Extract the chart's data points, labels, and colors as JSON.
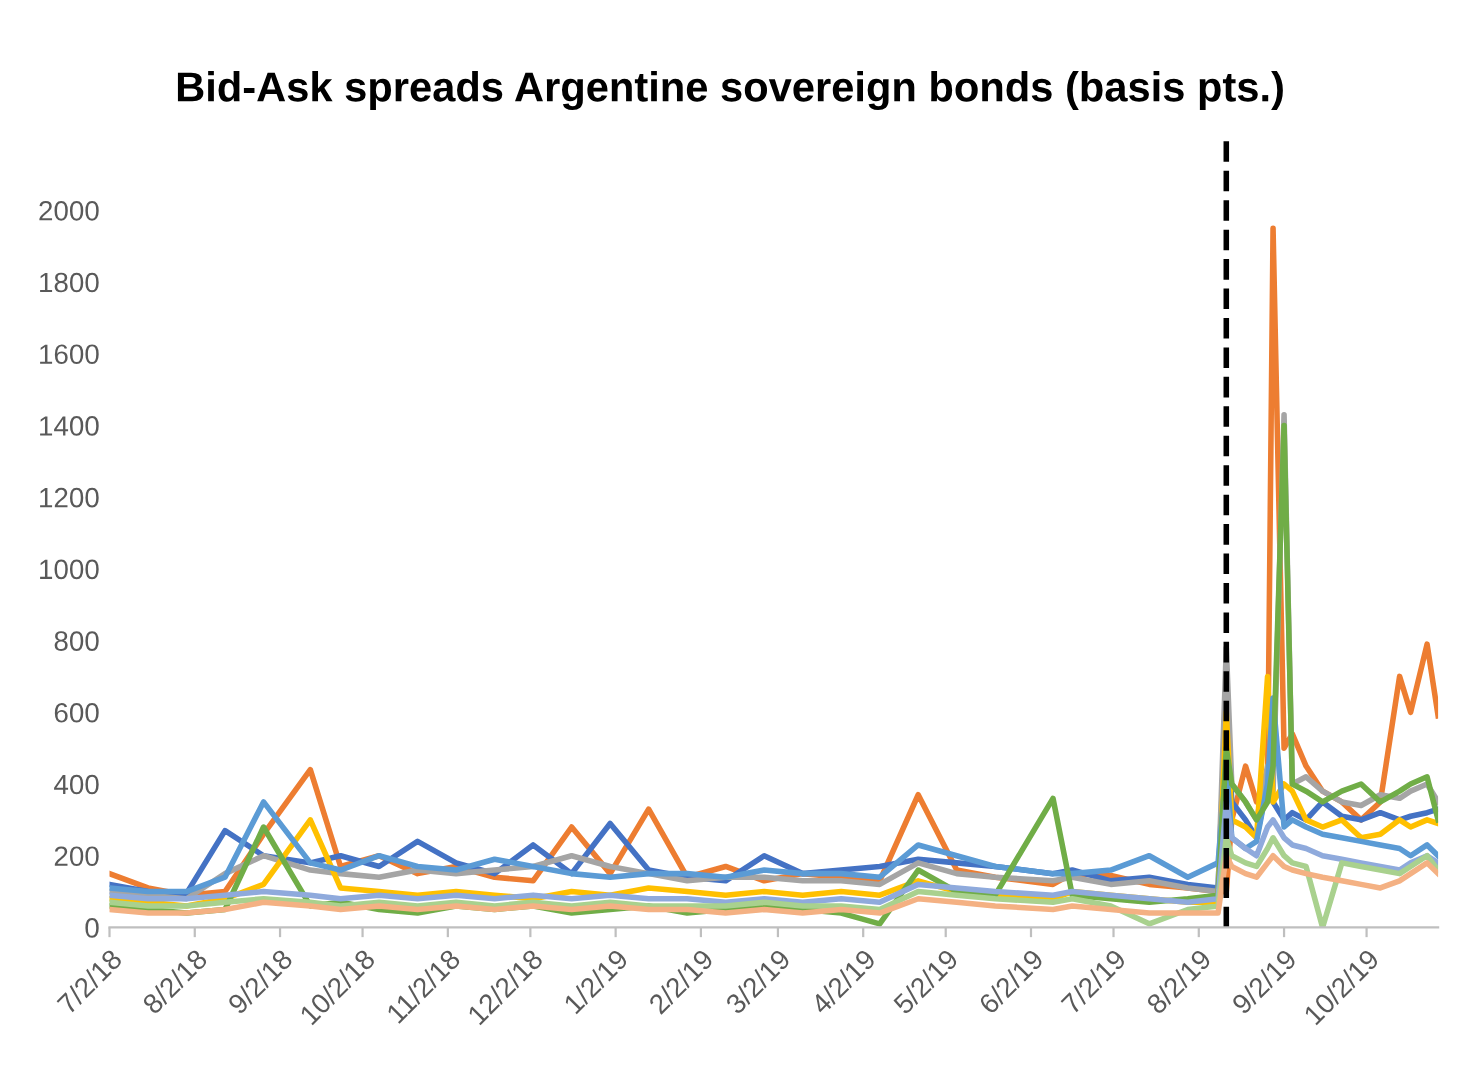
{
  "chart_data": {
    "type": "line",
    "title": "Bid-Ask spreads Argentine sovereign bonds (basis pts.)",
    "x": [
      "2018-07-02",
      "2018-07-16",
      "2018-07-30",
      "2018-08-13",
      "2018-08-27",
      "2018-09-13",
      "2018-09-24",
      "2018-10-08",
      "2018-10-22",
      "2018-11-05",
      "2018-11-19",
      "2018-12-03",
      "2018-12-17",
      "2018-12-31",
      "2019-01-14",
      "2019-01-28",
      "2019-02-11",
      "2019-02-25",
      "2019-03-11",
      "2019-03-25",
      "2019-04-08",
      "2019-04-22",
      "2019-05-06",
      "2019-05-20",
      "2019-06-10",
      "2019-06-17",
      "2019-07-01",
      "2019-07-15",
      "2019-07-29",
      "2019-08-09",
      "2019-08-12",
      "2019-08-14",
      "2019-08-19",
      "2019-08-23",
      "2019-08-27",
      "2019-08-29",
      "2019-09-02",
      "2019-09-05",
      "2019-09-10",
      "2019-09-16",
      "2019-09-23",
      "2019-09-30",
      "2019-10-07",
      "2019-10-14",
      "2019-10-18",
      "2019-10-24",
      "2019-10-28"
    ],
    "series": [
      {
        "color": "#ed7d31",
        "values": [
          150,
          110,
          90,
          100,
          260,
          440,
          170,
          200,
          150,
          170,
          140,
          130,
          280,
          150,
          330,
          140,
          170,
          130,
          150,
          140,
          130,
          370,
          160,
          140,
          120,
          150,
          145,
          120,
          110,
          100,
          100,
          300,
          450,
          350,
          400,
          1950,
          500,
          540,
          450,
          380,
          350,
          300,
          350,
          700,
          600,
          790,
          590
        ]
      },
      {
        "color": "#4472c4",
        "values": [
          120,
          100,
          95,
          270,
          200,
          180,
          200,
          170,
          240,
          180,
          150,
          230,
          150,
          290,
          160,
          140,
          130,
          200,
          150,
          160,
          170,
          190,
          180,
          170,
          150,
          160,
          130,
          140,
          120,
          110,
          650,
          350,
          300,
          250,
          400,
          350,
          300,
          320,
          300,
          350,
          310,
          300,
          320,
          300,
          310,
          320,
          330
        ]
      },
      {
        "color": "#a5a5a5",
        "values": [
          100,
          90,
          80,
          150,
          200,
          160,
          150,
          140,
          160,
          150,
          160,
          170,
          200,
          170,
          150,
          130,
          140,
          140,
          130,
          130,
          120,
          180,
          150,
          140,
          130,
          140,
          120,
          130,
          110,
          100,
          780,
          400,
          350,
          300,
          450,
          380,
          1430,
          400,
          420,
          380,
          350,
          340,
          370,
          360,
          380,
          400,
          350
        ]
      },
      {
        "color": "#ffc000",
        "values": [
          80,
          70,
          60,
          80,
          120,
          300,
          110,
          100,
          90,
          100,
          90,
          80,
          100,
          90,
          110,
          100,
          90,
          100,
          90,
          100,
          90,
          130,
          100,
          90,
          80,
          100,
          90,
          80,
          70,
          70,
          600,
          300,
          280,
          250,
          700,
          350,
          400,
          380,
          300,
          280,
          300,
          250,
          260,
          300,
          280,
          300,
          290
        ]
      },
      {
        "color": "#5b9bd5",
        "values": [
          110,
          100,
          100,
          140,
          350,
          180,
          160,
          200,
          170,
          160,
          190,
          170,
          150,
          140,
          150,
          150,
          140,
          160,
          150,
          150,
          140,
          230,
          200,
          170,
          150,
          150,
          160,
          200,
          140,
          180,
          450,
          250,
          220,
          240,
          400,
          640,
          280,
          300,
          280,
          260,
          250,
          240,
          230,
          220,
          200,
          230,
          200
        ]
      },
      {
        "color": "#70ad47",
        "values": [
          60,
          50,
          40,
          50,
          280,
          60,
          70,
          50,
          40,
          60,
          50,
          60,
          40,
          50,
          60,
          40,
          50,
          60,
          50,
          40,
          10,
          160,
          100,
          90,
          360,
          90,
          80,
          70,
          80,
          90,
          500,
          400,
          350,
          300,
          350,
          450,
          1400,
          400,
          380,
          350,
          380,
          400,
          350,
          380,
          400,
          420,
          300
        ]
      },
      {
        "color": "#8faadc",
        "values": [
          90,
          80,
          80,
          90,
          100,
          90,
          80,
          90,
          80,
          90,
          80,
          90,
          80,
          90,
          80,
          80,
          70,
          80,
          70,
          80,
          70,
          120,
          110,
          100,
          90,
          100,
          90,
          80,
          70,
          80,
          350,
          250,
          220,
          200,
          280,
          300,
          250,
          230,
          220,
          200,
          190,
          180,
          170,
          160,
          180,
          200,
          180
        ]
      },
      {
        "color": "#a9d18e",
        "values": [
          70,
          60,
          60,
          70,
          80,
          70,
          60,
          70,
          60,
          70,
          60,
          70,
          60,
          70,
          60,
          60,
          60,
          70,
          60,
          60,
          50,
          100,
          90,
          80,
          70,
          80,
          60,
          10,
          50,
          60,
          250,
          200,
          180,
          170,
          220,
          250,
          200,
          180,
          170,
          0,
          180,
          170,
          160,
          150,
          170,
          200,
          160
        ]
      },
      {
        "color": "#f4b183",
        "values": [
          50,
          40,
          40,
          50,
          70,
          60,
          50,
          60,
          50,
          60,
          50,
          60,
          50,
          60,
          50,
          50,
          40,
          50,
          40,
          50,
          40,
          80,
          70,
          60,
          50,
          60,
          50,
          40,
          40,
          40,
          200,
          170,
          150,
          140,
          180,
          200,
          170,
          160,
          150,
          140,
          130,
          120,
          110,
          130,
          150,
          180,
          150
        ]
      }
    ],
    "xlim": [
      "2018-07-02",
      "2019-10-28"
    ],
    "xticks": [
      {
        "value": "2018-07-02",
        "label": "7/2/18"
      },
      {
        "value": "2018-08-02",
        "label": "8/2/18"
      },
      {
        "value": "2018-09-02",
        "label": "9/2/18"
      },
      {
        "value": "2018-10-02",
        "label": "10/2/18"
      },
      {
        "value": "2018-11-02",
        "label": "11/2/18"
      },
      {
        "value": "2018-12-02",
        "label": "12/2/18"
      },
      {
        "value": "2019-01-02",
        "label": "1/2/19"
      },
      {
        "value": "2019-02-02",
        "label": "2/2/19"
      },
      {
        "value": "2019-03-02",
        "label": "3/2/19"
      },
      {
        "value": "2019-04-02",
        "label": "4/2/19"
      },
      {
        "value": "2019-05-02",
        "label": "5/2/19"
      },
      {
        "value": "2019-06-02",
        "label": "6/2/19"
      },
      {
        "value": "2019-07-02",
        "label": "7/2/19"
      },
      {
        "value": "2019-08-02",
        "label": "8/2/19"
      },
      {
        "value": "2019-09-02",
        "label": "9/2/19"
      },
      {
        "value": "2019-10-02",
        "label": "10/2/19"
      }
    ],
    "ylim": [
      0,
      2200
    ],
    "yticks": [
      0,
      200,
      400,
      600,
      800,
      1000,
      1200,
      1400,
      1600,
      1800,
      2000
    ],
    "ref_lines": [
      {
        "axis": "x",
        "value": "2019-08-12",
        "label": null,
        "color": "#000000",
        "line_style": "dashed"
      }
    ],
    "grid": false,
    "legend": false,
    "marker": "none",
    "line_style": "solid"
  }
}
